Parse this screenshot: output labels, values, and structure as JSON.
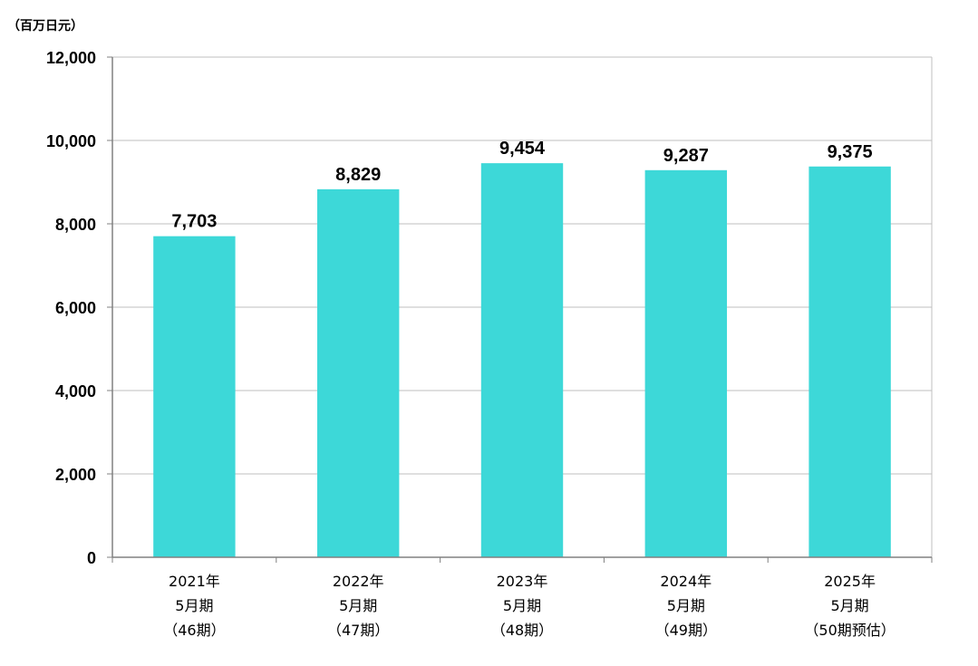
{
  "unit_label": "（百万日元）",
  "colors": {
    "bar": "#3dd8d8",
    "grid": "#bfbfbf",
    "axis": "#808080"
  },
  "chart_data": {
    "type": "bar",
    "title": "",
    "xlabel": "",
    "ylabel": "（百万日元）",
    "ylim": [
      0,
      12000
    ],
    "yticks": [
      0,
      2000,
      4000,
      6000,
      8000,
      10000,
      12000
    ],
    "ytick_labels": [
      "0",
      "2,000",
      "4,000",
      "6,000",
      "8,000",
      "10,000",
      "12,000"
    ],
    "grid": true,
    "categories": [
      [
        "2021年",
        "5月期",
        "（46期）"
      ],
      [
        "2022年",
        "5月期",
        "（47期）"
      ],
      [
        "2023年",
        "5月期",
        "（48期）"
      ],
      [
        "2024年",
        "5月期",
        "（49期）"
      ],
      [
        "2025年",
        "5月期",
        "（50期预估）"
      ]
    ],
    "values": [
      7703,
      8829,
      9454,
      9287,
      9375
    ],
    "data_labels": [
      "7,703",
      "8,829",
      "9,454",
      "9,287",
      "9,375"
    ]
  }
}
